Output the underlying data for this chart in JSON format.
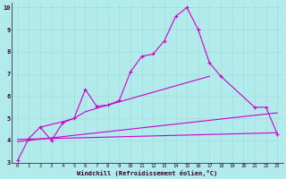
{
  "xlabel": "Windchill (Refroidissement éolien,°C)",
  "background_color": "#b2ebeb",
  "grid_color": "#c8f0f0",
  "line_color": "#cc00cc",
  "xlim": [
    -0.5,
    23.5
  ],
  "ylim": [
    3,
    10.2
  ],
  "xticks": [
    0,
    1,
    2,
    3,
    4,
    5,
    6,
    7,
    8,
    9,
    10,
    11,
    12,
    13,
    14,
    15,
    16,
    17,
    18,
    19,
    20,
    21,
    22,
    23
  ],
  "yticks": [
    3,
    4,
    5,
    6,
    7,
    8,
    9,
    10
  ],
  "series0_x": [
    0,
    1,
    2,
    3,
    4,
    5,
    6,
    7,
    8,
    9,
    10,
    11,
    12,
    13,
    14,
    15,
    16,
    17,
    18,
    21,
    22,
    23
  ],
  "series0_y": [
    3.1,
    4.1,
    4.6,
    4.0,
    4.8,
    5.0,
    6.3,
    5.55,
    5.6,
    5.8,
    7.1,
    7.8,
    7.9,
    8.5,
    9.6,
    10.0,
    9.0,
    7.5,
    6.9,
    5.5,
    5.5,
    4.3
  ],
  "series1_x": [
    2,
    4,
    5,
    6,
    7,
    8,
    17
  ],
  "series1_y": [
    4.6,
    4.85,
    5.0,
    5.3,
    5.45,
    5.6,
    6.9
  ],
  "trend1_x": [
    0,
    23
  ],
  "trend1_y": [
    3.95,
    5.25
  ],
  "trend2_x": [
    0,
    23
  ],
  "trend2_y": [
    4.05,
    4.35
  ]
}
